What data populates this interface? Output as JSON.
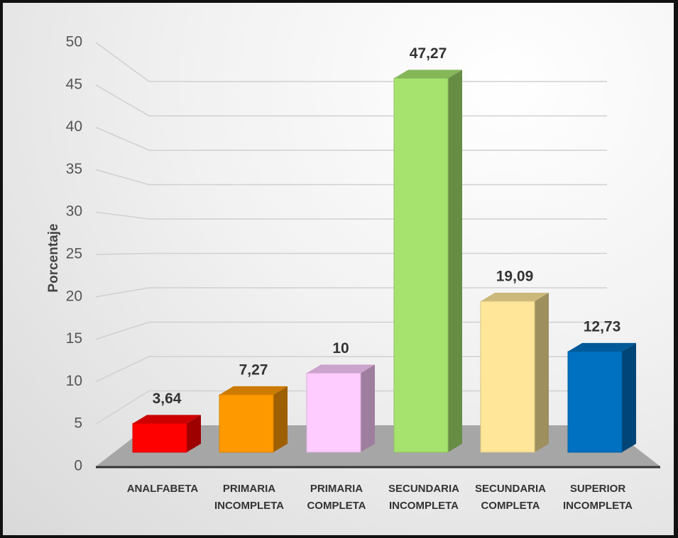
{
  "chart_data": {
    "type": "bar3d",
    "y_label": "Porcentaje",
    "categories": [
      "ANALFABETA",
      "PRIMARIA INCOMPLETA",
      "PRIMARIA COMPLETA",
      "SECUNDARIA INCOMPLETA",
      "SECUNDARIA COMPLETA",
      "SUPERIOR INCOMPLETA"
    ],
    "values": [
      3.64,
      7.27,
      10,
      47.27,
      19.09,
      12.73
    ],
    "value_labels": [
      "3,64",
      "7,27",
      "10",
      "47,27",
      "19,09",
      "12,73"
    ],
    "colors": [
      "#ff0000",
      "#ff9900",
      "#ffccff",
      "#a6e36e",
      "#ffe699",
      "#0070c0"
    ],
    "ylim": [
      0,
      50
    ],
    "yticks": [
      0,
      5,
      10,
      15,
      20,
      25,
      30,
      35,
      40,
      45,
      50
    ],
    "grid": true
  }
}
